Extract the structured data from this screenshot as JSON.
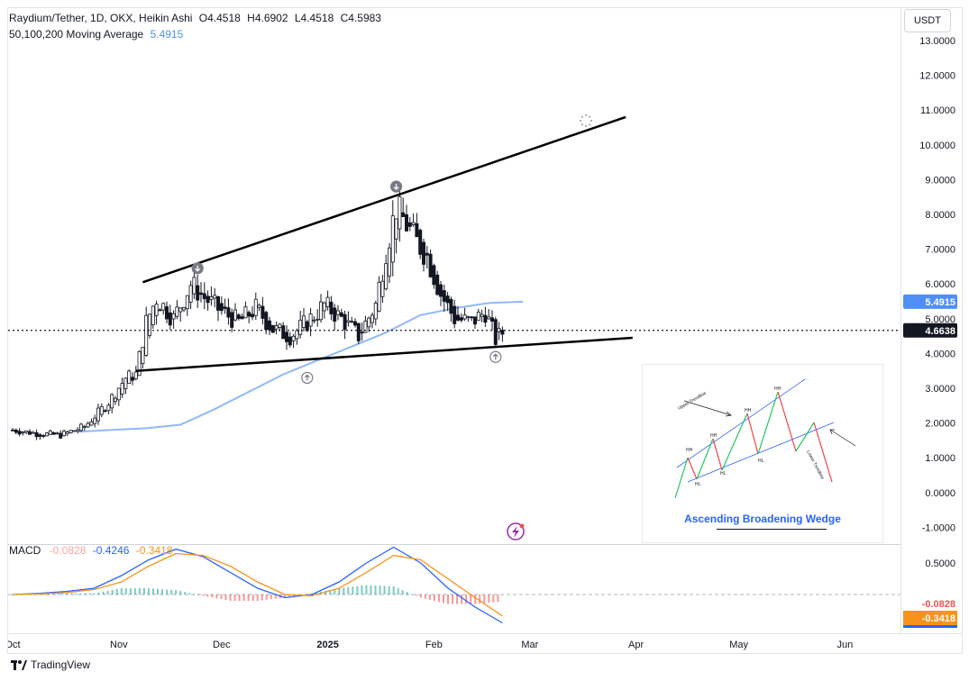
{
  "header": {
    "symbol": "Raydium/Tether, 1D, OKX, Heikin Ashi",
    "open": "O4.4518",
    "high": "H4.6902",
    "low": "L4.4518",
    "close": "C4.5983",
    "ma_label": "50,100,200 Moving Average",
    "ma_value": "5.4915"
  },
  "currency_button": "USDT",
  "macd_header": {
    "label": "MACD",
    "hist": "-0.0828",
    "macd": "-0.4246",
    "signal": "-0.3418"
  },
  "brand": "TradingView",
  "inset": {
    "title": "Ascending Broadening Wedge",
    "labels": [
      "Upper Trendline",
      "Lower Trendline",
      "HH",
      "HH",
      "HH",
      "HH",
      "HL",
      "HL",
      "HL"
    ]
  },
  "colors": {
    "up": "#26a69a",
    "down": "#ef5350",
    "ma": "#90b8f8",
    "macd": "#2962ff",
    "signal": "#f7931a",
    "trendline": "#000000"
  },
  "chart_data": {
    "type": "line",
    "price_axis": {
      "ticks": [
        "13.0000",
        "12.0000",
        "11.0000",
        "10.0000",
        "9.0000",
        "8.0000",
        "7.0000",
        "6.0000",
        "5.0000",
        "4.0000",
        "3.0000",
        "2.0000",
        "1.0000",
        "0.0000",
        "-1.0000"
      ],
      "ylim": [
        -1.2,
        13.3
      ]
    },
    "time_axis": {
      "ticks": [
        "Oct",
        "Nov",
        "Dec",
        "2025",
        "Feb",
        "Mar",
        "Apr",
        "May",
        "Jun"
      ]
    },
    "last_price": "4.6638",
    "ma_price_label": "5.4915",
    "candles": [
      [
        "2024-10-01",
        1.8
      ],
      [
        "2024-10-08",
        1.7
      ],
      [
        "2024-10-15",
        1.65
      ],
      [
        "2024-10-22",
        1.9
      ],
      [
        "2024-10-29",
        2.6
      ],
      [
        "2024-11-03",
        3.3
      ],
      [
        "2024-11-06",
        3.4
      ],
      [
        "2024-11-09",
        4.9
      ],
      [
        "2024-11-12",
        5.6
      ],
      [
        "2024-11-17",
        5.0
      ],
      [
        "2024-11-22",
        6.0
      ],
      [
        "2024-11-26",
        5.6
      ],
      [
        "2024-12-01",
        5.2
      ],
      [
        "2024-12-06",
        4.9
      ],
      [
        "2024-12-11",
        5.3
      ],
      [
        "2024-12-16",
        4.7
      ],
      [
        "2024-12-21",
        4.5
      ],
      [
        "2024-12-26",
        4.9
      ],
      [
        "2024-12-31",
        5.4
      ],
      [
        "2025-01-05",
        5.0
      ],
      [
        "2025-01-10",
        4.5
      ],
      [
        "2025-01-15",
        5.4
      ],
      [
        "2025-01-18",
        7.0
      ],
      [
        "2025-01-21",
        8.2
      ],
      [
        "2025-01-24",
        7.7
      ],
      [
        "2025-01-27",
        7.2
      ],
      [
        "2025-01-30",
        6.8
      ],
      [
        "2025-02-03",
        5.7
      ],
      [
        "2025-02-07",
        5.0
      ],
      [
        "2025-02-12",
        4.9
      ],
      [
        "2025-02-16",
        5.2
      ],
      [
        "2025-02-19",
        4.4
      ],
      [
        "2025-02-21",
        4.6
      ]
    ],
    "series": [
      {
        "name": "50,100,200 Moving Average",
        "values": [
          1.75,
          1.8,
          1.85,
          1.95,
          2.4,
          2.9,
          3.4,
          3.8,
          4.2,
          4.6,
          5.1,
          5.3,
          5.45,
          5.49
        ]
      }
    ],
    "annotations": [
      "Ascending Broadening Wedge"
    ],
    "macd": {
      "ticks": [
        "0.5000"
      ],
      "hist_label": "-0.0828",
      "signal_label": "-0.3418",
      "macd_line": [
        0.0,
        0.02,
        0.05,
        0.1,
        0.3,
        0.55,
        0.72,
        0.6,
        0.35,
        0.1,
        -0.05,
        0.0,
        0.2,
        0.5,
        0.75,
        0.5,
        0.1,
        -0.2,
        -0.45
      ],
      "signal_line": [
        0.0,
        0.01,
        0.03,
        0.08,
        0.2,
        0.45,
        0.65,
        0.62,
        0.45,
        0.2,
        0.0,
        -0.02,
        0.1,
        0.35,
        0.62,
        0.55,
        0.25,
        -0.05,
        -0.34
      ]
    }
  }
}
